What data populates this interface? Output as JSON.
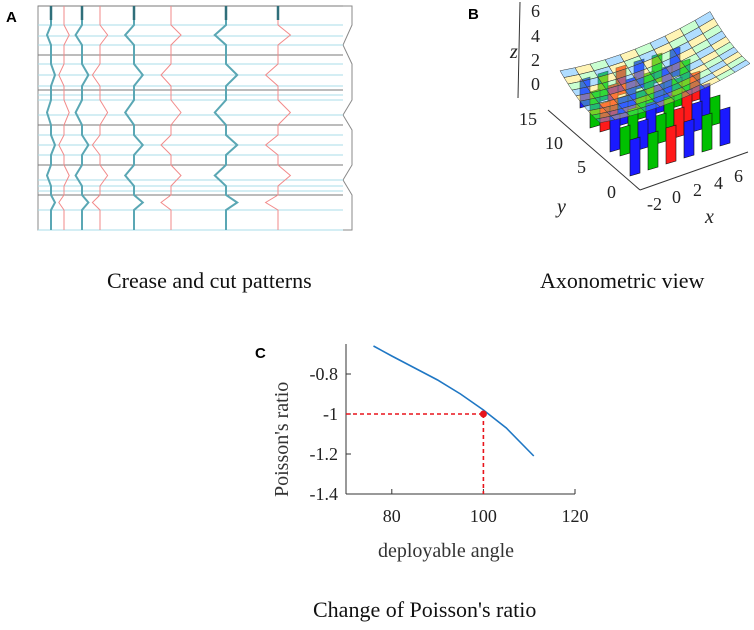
{
  "panelA": {
    "letter": "A",
    "caption": "Crease and cut patterns"
  },
  "panelB": {
    "letter": "B",
    "caption": "Axonometric view",
    "z_label": "z",
    "y_label": "y",
    "x_label": "x",
    "z_ticks": [
      "6",
      "4",
      "2",
      "0"
    ],
    "y_ticks": [
      "15",
      "10",
      "5",
      "0"
    ],
    "x_ticks": [
      "-2",
      "0",
      "2",
      "4",
      "6"
    ]
  },
  "panelC": {
    "letter": "C",
    "caption": "Change of Poisson's ratio"
  },
  "chart_data": {
    "type": "line",
    "ylabel": "Poisson's ratio",
    "xlabel": "deployable angle",
    "xlim": [
      70,
      120
    ],
    "ylim": [
      -1.4,
      -0.65
    ],
    "x_ticks": [
      80,
      100,
      120
    ],
    "y_ticks": [
      -0.8,
      -1,
      -1.2,
      -1.4
    ],
    "series": [
      {
        "color": "#1f77c4",
        "x": [
          76,
          80,
          85,
          90,
          95,
          100,
          105,
          111
        ],
        "y": [
          -0.66,
          -0.71,
          -0.77,
          -0.83,
          -0.9,
          -0.98,
          -1.07,
          -1.21
        ]
      }
    ],
    "highlight": {
      "x": 100,
      "y": -1,
      "color": "#e8141b"
    }
  }
}
